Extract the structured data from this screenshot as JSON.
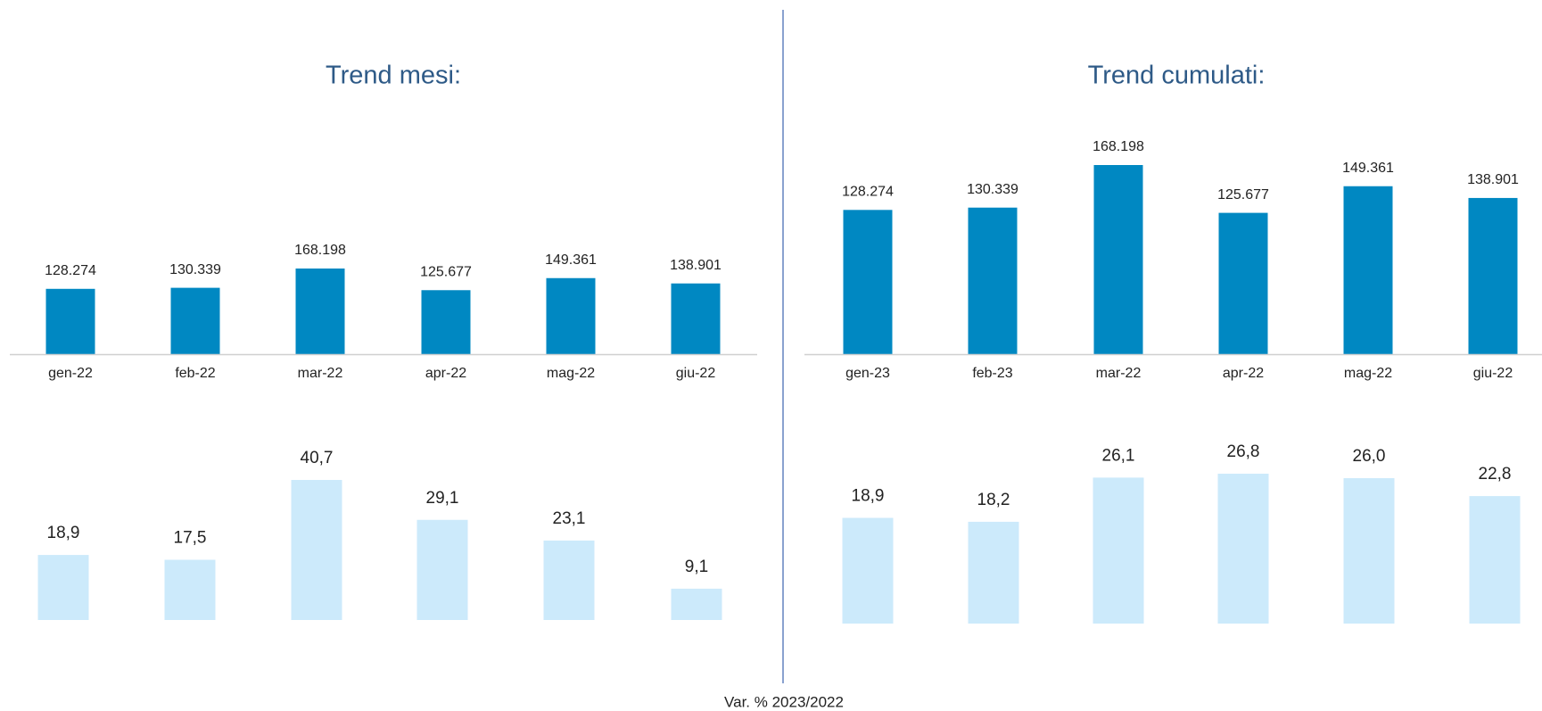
{
  "chart_data": [
    {
      "type": "bar",
      "title": "Trend mesi:",
      "categories": [
        "gen-22",
        "feb-22",
        "mar-22",
        "apr-22",
        "mag-22",
        "giu-22"
      ],
      "values": [
        128274,
        130339,
        168198,
        125677,
        149361,
        138901
      ],
      "value_labels": [
        "128.274",
        "130.339",
        "168.198",
        "125.677",
        "149.361",
        "138.901"
      ],
      "color": "#0088c2"
    },
    {
      "type": "bar",
      "title": "Trend cumulati:",
      "categories": [
        "gen-23",
        "feb-23",
        "mar-22",
        "apr-22",
        "mag-22",
        "giu-22"
      ],
      "values": [
        128274,
        130339,
        168198,
        125677,
        149361,
        138901
      ],
      "value_labels": [
        "128.274",
        "130.339",
        "168.198",
        "125.677",
        "149.361",
        "138.901"
      ],
      "color": "#0088c2"
    },
    {
      "type": "bar",
      "values": [
        18.9,
        17.5,
        40.7,
        29.1,
        23.1,
        9.1
      ],
      "value_labels": [
        "18,9",
        "17,5",
        "40,7",
        "29,1",
        "23,1",
        "9,1"
      ],
      "color": "#cceafb"
    },
    {
      "type": "bar",
      "values": [
        18.9,
        18.2,
        26.1,
        26.8,
        26.0,
        22.8
      ],
      "value_labels": [
        "18,9",
        "18,2",
        "26,1",
        "26,8",
        "26,0",
        "22,8"
      ],
      "color": "#cceafb"
    }
  ],
  "footer": "Var. %  2023/2022"
}
